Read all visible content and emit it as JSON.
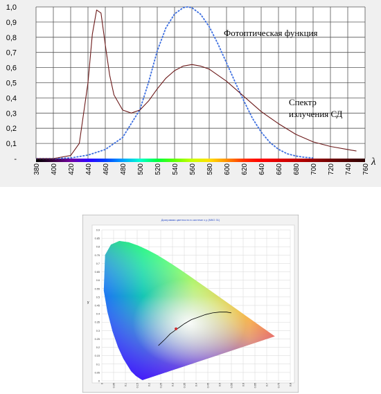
{
  "chart_data": [
    {
      "type": "line",
      "ylim": [
        0,
        1.0
      ],
      "xlim": [
        380,
        760
      ],
      "y_ticks": [
        "1,0",
        "0,9",
        "0,8",
        "0,7",
        "0,6",
        "0,5",
        "0,4",
        "0,3",
        "0,2",
        "0,1",
        "-"
      ],
      "x_ticks": [
        "380",
        "400",
        "420",
        "440",
        "460",
        "480",
        "500",
        "520",
        "540",
        "560",
        "580",
        "600",
        "620",
        "640",
        "660",
        "680",
        "700",
        "720",
        "740",
        "760"
      ],
      "x_symbol": "λ",
      "grid": true,
      "series": [
        {
          "name": "Фотоптическая функция",
          "color": "#3d6fe0",
          "style": "dashed",
          "x": [
            380,
            400,
            420,
            440,
            460,
            480,
            500,
            510,
            520,
            530,
            540,
            550,
            555,
            560,
            570,
            580,
            590,
            600,
            610,
            620,
            630,
            640,
            650,
            660,
            670,
            680,
            690,
            700
          ],
          "y": [
            0.0,
            0.0,
            0.004,
            0.023,
            0.06,
            0.139,
            0.323,
            0.503,
            0.71,
            0.862,
            0.954,
            0.995,
            1.0,
            0.995,
            0.952,
            0.87,
            0.757,
            0.631,
            0.503,
            0.381,
            0.265,
            0.175,
            0.107,
            0.061,
            0.032,
            0.017,
            0.008,
            0.004
          ]
        },
        {
          "name": "Спектр излучения СД",
          "label_lines": [
            "Спектр",
            "излучения СД"
          ],
          "color": "#6b1818",
          "style": "solid",
          "x": [
            380,
            400,
            420,
            430,
            440,
            445,
            450,
            455,
            460,
            465,
            470,
            480,
            490,
            500,
            510,
            520,
            530,
            540,
            550,
            560,
            570,
            580,
            600,
            620,
            640,
            660,
            680,
            700,
            720,
            740,
            750
          ],
          "y": [
            0.0,
            0.0,
            0.02,
            0.1,
            0.5,
            0.82,
            0.98,
            0.96,
            0.75,
            0.55,
            0.42,
            0.32,
            0.3,
            0.32,
            0.38,
            0.46,
            0.53,
            0.58,
            0.61,
            0.62,
            0.61,
            0.59,
            0.51,
            0.41,
            0.31,
            0.23,
            0.16,
            0.11,
            0.08,
            0.06,
            0.05
          ]
        }
      ]
    },
    {
      "type": "scatter",
      "title": "Диаграмма цветности в системе x,y (МКО 31)",
      "xlim": [
        0,
        0.8
      ],
      "ylim": [
        0,
        0.9
      ],
      "x_ticks": [
        "0",
        "0.05",
        "0.1",
        "0.15",
        "0.2",
        "0.25",
        "0.3",
        "0.35",
        "0.4",
        "0.45",
        "0.5",
        "0.55",
        "0.6",
        "0.65",
        "0.7",
        "0.75",
        "0.8"
      ],
      "y_ticks": [
        "0.9",
        "0.85",
        "0.8",
        "0.75",
        "0.7",
        "0.65",
        "0.6",
        "0.55",
        "0.5",
        "0.45",
        "0.4",
        "0.35",
        "0.3",
        "0.25",
        "0.2",
        "0.15",
        "0.1",
        "0.05",
        "0"
      ],
      "ylabel": "y",
      "grid": true,
      "locus_x": [
        0.1741,
        0.1738,
        0.1714,
        0.1644,
        0.144,
        0.1241,
        0.0913,
        0.0687,
        0.0454,
        0.0235,
        0.0082,
        0.0139,
        0.0389,
        0.0743,
        0.1142,
        0.1547,
        0.1929,
        0.2296,
        0.2658,
        0.3016,
        0.3373,
        0.3731,
        0.4087,
        0.4441,
        0.4788,
        0.5125,
        0.5448,
        0.5752,
        0.6029,
        0.627,
        0.6482,
        0.6658,
        0.6801,
        0.6915,
        0.7006,
        0.7079,
        0.7347
      ],
      "locus_y": [
        0.005,
        0.0049,
        0.0051,
        0.0109,
        0.0297,
        0.0578,
        0.1327,
        0.2007,
        0.295,
        0.4127,
        0.5384,
        0.7502,
        0.812,
        0.8338,
        0.8262,
        0.8059,
        0.7816,
        0.7543,
        0.7243,
        0.6923,
        0.6589,
        0.6245,
        0.5896,
        0.5547,
        0.5202,
        0.4866,
        0.4544,
        0.4242,
        0.3965,
        0.3725,
        0.3514,
        0.334,
        0.3197,
        0.3083,
        0.2993,
        0.292,
        0.2653
      ],
      "planck_x": [
        0.24,
        0.27,
        0.29,
        0.31,
        0.33,
        0.35,
        0.38,
        0.41,
        0.44,
        0.47,
        0.5,
        0.53,
        0.55
      ],
      "planck_y": [
        0.21,
        0.25,
        0.28,
        0.3,
        0.32,
        0.34,
        0.365,
        0.38,
        0.395,
        0.405,
        0.41,
        0.41,
        0.405
      ],
      "point": {
        "x": 0.315,
        "y": 0.31,
        "color": "#d03030"
      }
    }
  ]
}
